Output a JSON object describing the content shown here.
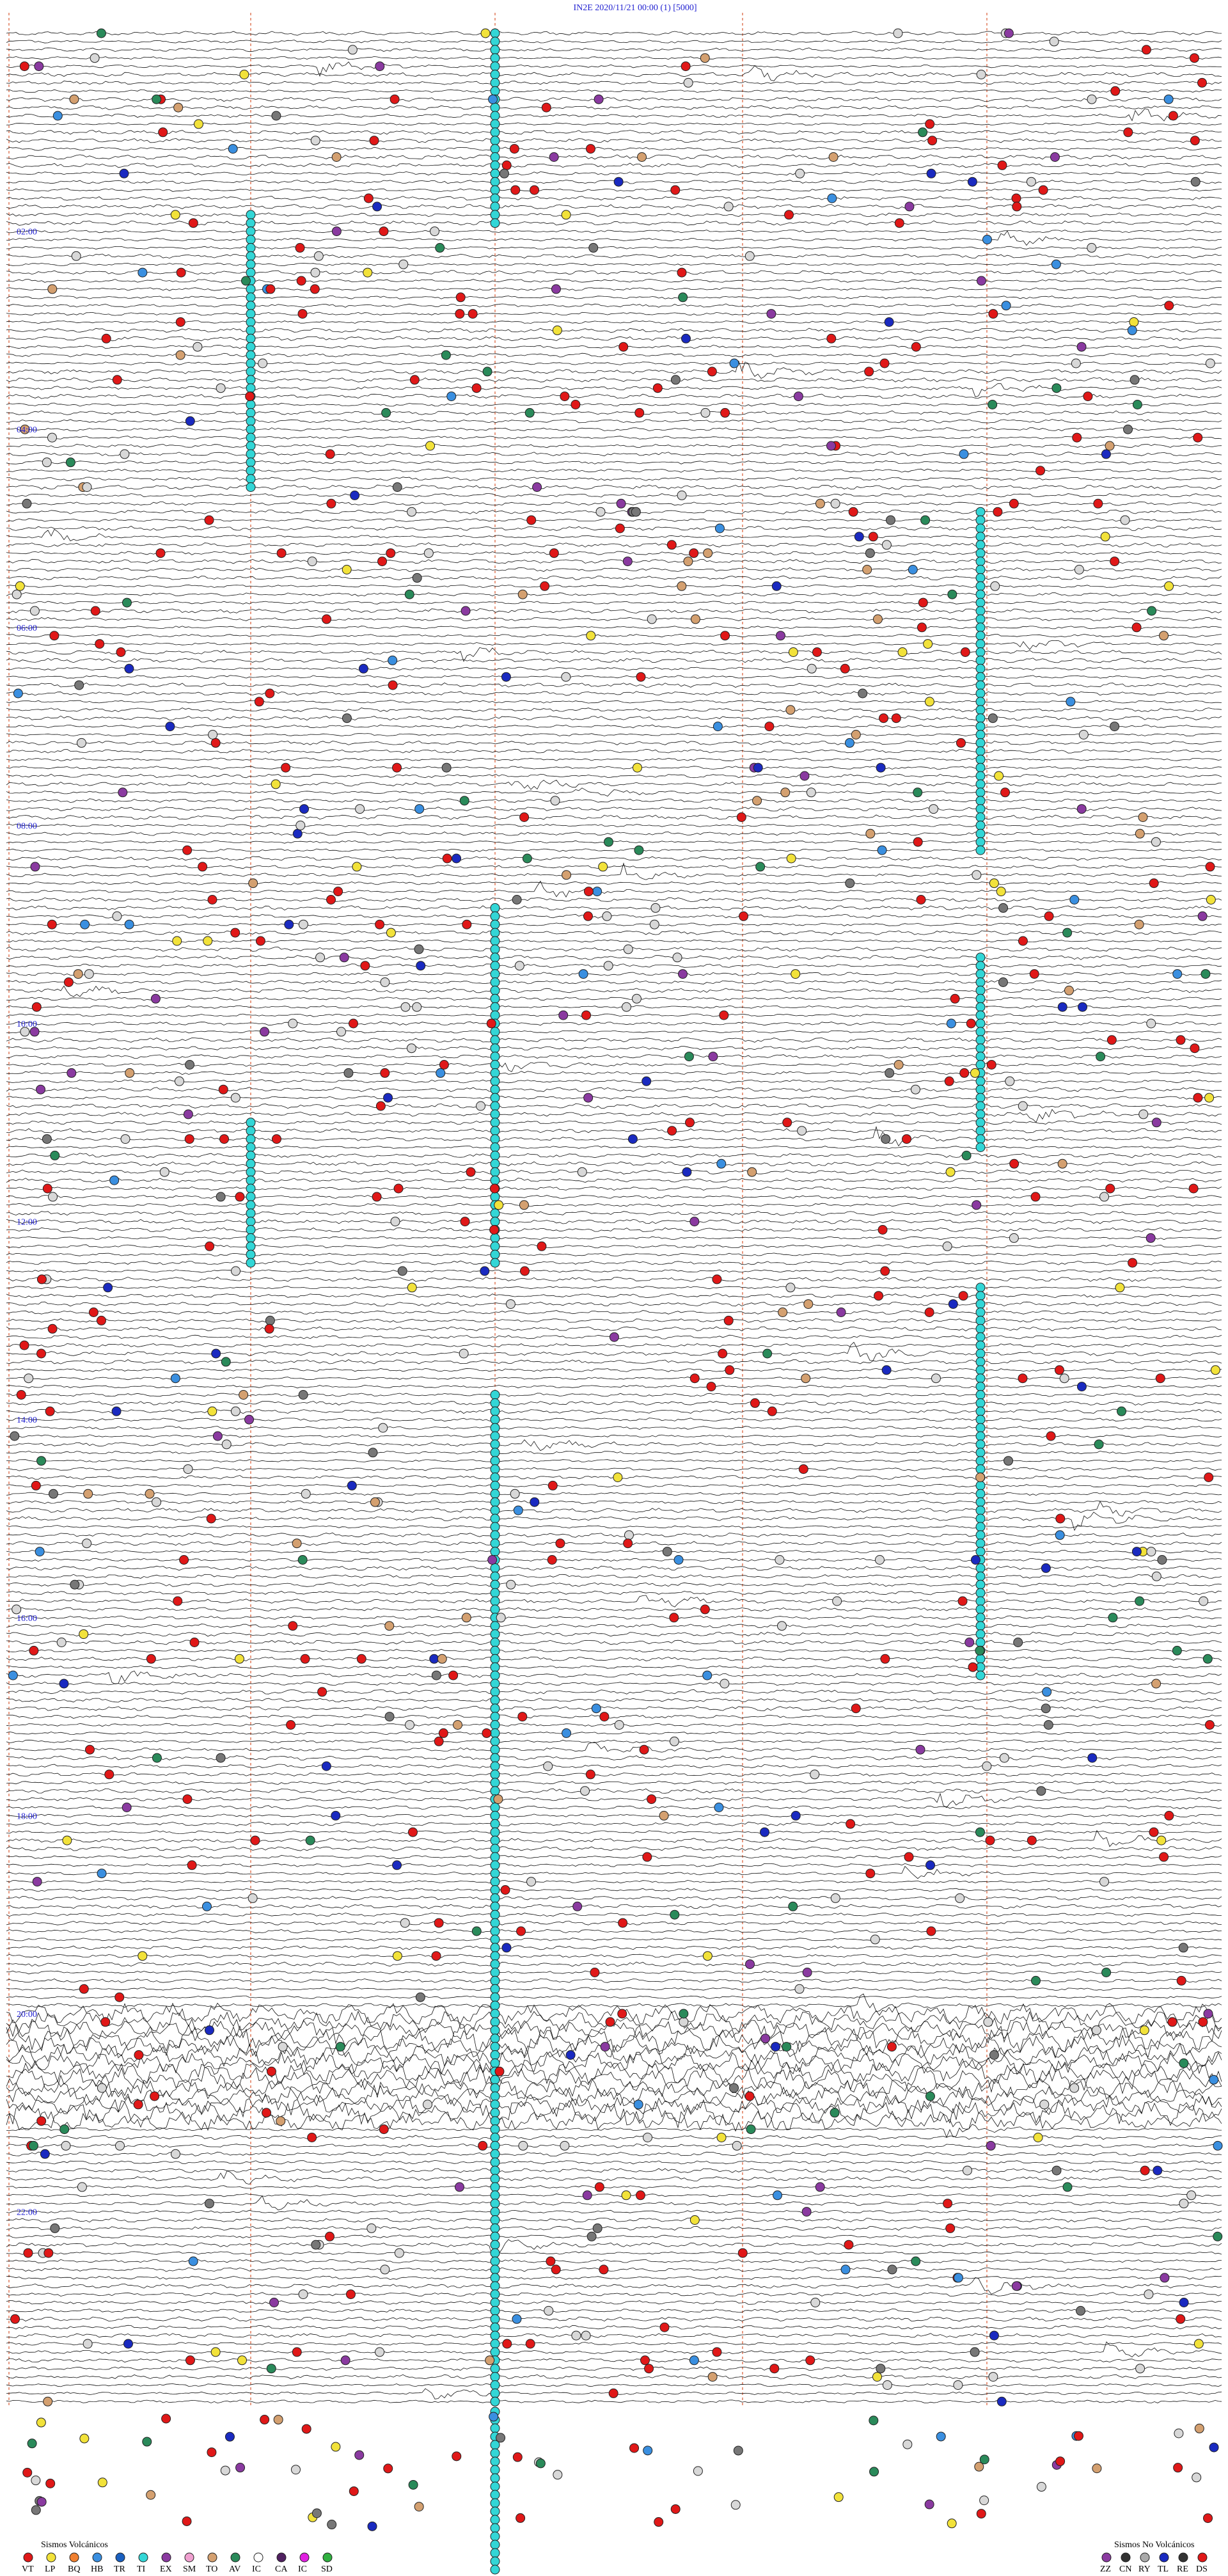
{
  "header": {
    "title": "IN2E    2020/11/21 00:00    (1)    [5000]"
  },
  "hour_labels": [
    "02:00",
    "04:00",
    "06:00",
    "08:00",
    "10:00",
    "12:00",
    "14:00",
    "16:00",
    "18:00",
    "20:00",
    "22:00"
  ],
  "legend": {
    "volcanic": {
      "title": "Sismos Volcánicos",
      "codes": [
        "VT",
        "LP",
        "BQ",
        "HB",
        "TR",
        "TI",
        "EX",
        "SM",
        "TO",
        "AV",
        "IC",
        "CA",
        "IC",
        "SD"
      ]
    },
    "non_volcanic": {
      "title": "Sismos No Volcánicos",
      "codes": [
        "ZZ",
        "CN",
        "RY",
        "TL",
        "RE",
        "DS"
      ]
    }
  }
}
